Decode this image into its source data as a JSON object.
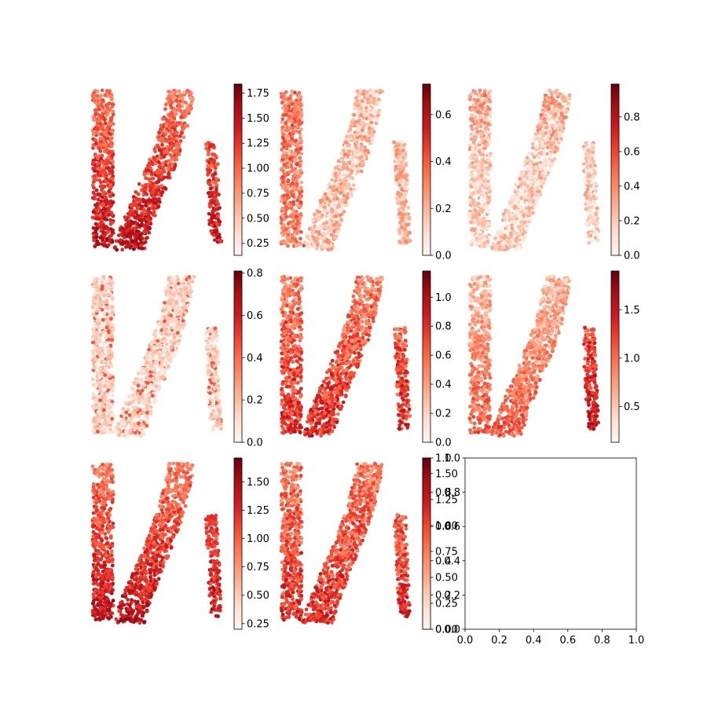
{
  "figure": {
    "background": "#ffffff",
    "colormap": "Reds"
  },
  "chart_data": [
    {
      "type": "scatter",
      "panel": 1,
      "pattern": "a",
      "clim": [
        0.13,
        1.84
      ],
      "colorbar_ticks": [
        "0.25",
        "0.50",
        "0.75",
        "1.00",
        "1.25",
        "1.50",
        "1.75"
      ]
    },
    {
      "type": "scatter",
      "panel": 2,
      "pattern": "b",
      "clim": [
        0.0,
        0.73
      ],
      "colorbar_ticks": [
        "0.0",
        "0.2",
        "0.4",
        "0.6"
      ]
    },
    {
      "type": "scatter",
      "panel": 3,
      "pattern": "c",
      "clim": [
        0.0,
        0.99
      ],
      "colorbar_ticks": [
        "0.0",
        "0.2",
        "0.4",
        "0.6",
        "0.8"
      ]
    },
    {
      "type": "scatter",
      "panel": 4,
      "pattern": "d",
      "clim": [
        0.0,
        0.81
      ],
      "colorbar_ticks": [
        "0.0",
        "0.2",
        "0.4",
        "0.6",
        "0.8"
      ]
    },
    {
      "type": "scatter",
      "panel": 5,
      "pattern": "e",
      "clim": [
        0.0,
        1.18
      ],
      "colorbar_ticks": [
        "0.0",
        "0.2",
        "0.4",
        "0.6",
        "0.8",
        "1.0"
      ]
    },
    {
      "type": "scatter",
      "panel": 6,
      "pattern": "f",
      "clim": [
        0.13,
        1.9
      ],
      "colorbar_ticks": [
        "0.5",
        "1.0",
        "1.5"
      ]
    },
    {
      "type": "scatter",
      "panel": 7,
      "pattern": "a",
      "clim": [
        0.2,
        1.71
      ],
      "colorbar_ticks": [
        "0.25",
        "0.50",
        "0.75",
        "1.00",
        "1.25",
        "1.50"
      ]
    },
    {
      "type": "scatter",
      "panel": 8,
      "pattern": "e",
      "clim": [
        0.0,
        1.65
      ],
      "colorbar_ticks": [
        "0.00",
        "0.25",
        "0.50",
        "0.75",
        "1.00",
        "1.25",
        "1.50"
      ]
    },
    {
      "type": "scatter",
      "panel": 9,
      "empty": true,
      "overlay_colorbar_ticks": [
        "0.0",
        "0.2",
        "0.4",
        "0.6",
        "0.8",
        "1.0"
      ],
      "xlim": [
        0,
        1
      ],
      "ylim": [
        0,
        1
      ],
      "xticks": [
        "0.0",
        "0.2",
        "0.4",
        "0.6",
        "0.8",
        "1.0"
      ],
      "yticks": [
        "0.0",
        "0.2",
        "0.4",
        "0.6",
        "0.8",
        "1.0"
      ]
    }
  ]
}
